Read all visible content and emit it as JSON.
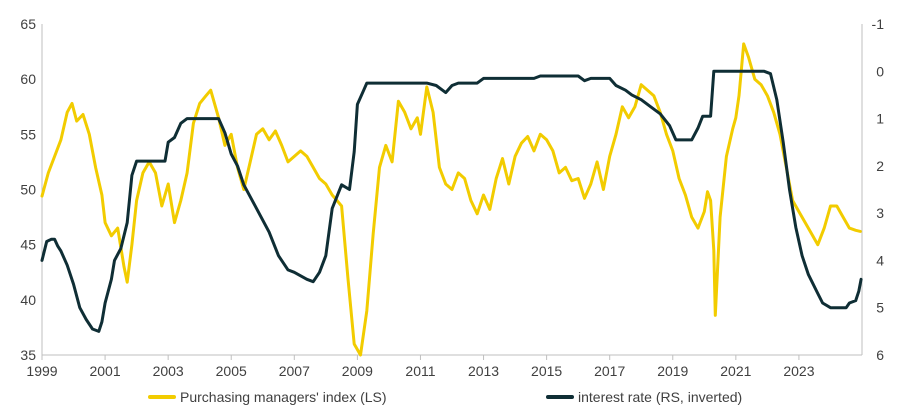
{
  "chart_data": {
    "type": "line",
    "colors": {
      "pmi": "#F2CC00",
      "rate": "#0F2E35"
    },
    "left_axis": {
      "ylim": [
        35,
        65
      ],
      "ticks": [
        35,
        40,
        45,
        50,
        55,
        60,
        65
      ]
    },
    "right_axis": {
      "ylim": [
        -1,
        6
      ],
      "inverted": true,
      "ticks": [
        -1,
        0,
        1,
        2,
        3,
        4,
        5,
        6
      ]
    },
    "xlim": [
      1999,
      2025
    ],
    "x_ticks": [
      "1999",
      "2001",
      "2003",
      "2005",
      "2007",
      "2009",
      "2011",
      "2013",
      "2015",
      "2017",
      "2019",
      "2021",
      "2023"
    ],
    "legend": {
      "pmi": "Purchasing managers' index (LS)",
      "rate": "interest rate (RS, inverted)"
    },
    "series": [
      {
        "name": "Purchasing managers' index (LS)",
        "axis": "left",
        "points": [
          [
            1999.0,
            49.4
          ],
          [
            1999.2,
            51.5
          ],
          [
            1999.4,
            53.0
          ],
          [
            1999.6,
            54.5
          ],
          [
            1999.8,
            57.0
          ],
          [
            1999.95,
            57.8
          ],
          [
            2000.1,
            56.2
          ],
          [
            2000.3,
            56.8
          ],
          [
            2000.5,
            55.0
          ],
          [
            2000.7,
            52.0
          ],
          [
            2000.9,
            49.5
          ],
          [
            2001.0,
            47.0
          ],
          [
            2001.2,
            45.8
          ],
          [
            2001.4,
            46.5
          ],
          [
            2001.6,
            43.0
          ],
          [
            2001.7,
            41.6
          ],
          [
            2001.85,
            45.0
          ],
          [
            2002.0,
            49.0
          ],
          [
            2002.2,
            51.5
          ],
          [
            2002.4,
            52.5
          ],
          [
            2002.6,
            51.5
          ],
          [
            2002.8,
            48.5
          ],
          [
            2003.0,
            50.5
          ],
          [
            2003.2,
            47.0
          ],
          [
            2003.4,
            49.0
          ],
          [
            2003.6,
            51.5
          ],
          [
            2003.8,
            56.0
          ],
          [
            2004.0,
            57.8
          ],
          [
            2004.2,
            58.5
          ],
          [
            2004.35,
            59.0
          ],
          [
            2004.6,
            56.5
          ],
          [
            2004.8,
            54.0
          ],
          [
            2005.0,
            55.0
          ],
          [
            2005.2,
            52.0
          ],
          [
            2005.4,
            50.0
          ],
          [
            2005.6,
            52.5
          ],
          [
            2005.8,
            55.0
          ],
          [
            2006.0,
            55.5
          ],
          [
            2006.2,
            54.5
          ],
          [
            2006.4,
            55.3
          ],
          [
            2006.6,
            54.0
          ],
          [
            2006.8,
            52.5
          ],
          [
            2007.0,
            53.0
          ],
          [
            2007.2,
            53.5
          ],
          [
            2007.4,
            53.0
          ],
          [
            2007.6,
            52.0
          ],
          [
            2007.8,
            51.0
          ],
          [
            2008.0,
            50.5
          ],
          [
            2008.2,
            49.5
          ],
          [
            2008.5,
            48.5
          ],
          [
            2008.7,
            42.0
          ],
          [
            2008.9,
            36.0
          ],
          [
            2009.1,
            35.0
          ],
          [
            2009.3,
            39.0
          ],
          [
            2009.5,
            46.0
          ],
          [
            2009.7,
            52.0
          ],
          [
            2009.9,
            54.0
          ],
          [
            2010.1,
            52.5
          ],
          [
            2010.3,
            58.0
          ],
          [
            2010.5,
            57.0
          ],
          [
            2010.7,
            55.5
          ],
          [
            2010.9,
            56.5
          ],
          [
            2011.0,
            55.0
          ],
          [
            2011.2,
            59.3
          ],
          [
            2011.4,
            57.0
          ],
          [
            2011.6,
            52.0
          ],
          [
            2011.8,
            50.5
          ],
          [
            2012.0,
            50.0
          ],
          [
            2012.2,
            51.5
          ],
          [
            2012.4,
            51.0
          ],
          [
            2012.6,
            49.0
          ],
          [
            2012.8,
            47.8
          ],
          [
            2013.0,
            49.5
          ],
          [
            2013.2,
            48.2
          ],
          [
            2013.4,
            51.0
          ],
          [
            2013.6,
            52.8
          ],
          [
            2013.8,
            50.5
          ],
          [
            2014.0,
            53.0
          ],
          [
            2014.2,
            54.2
          ],
          [
            2014.4,
            54.8
          ],
          [
            2014.6,
            53.5
          ],
          [
            2014.8,
            55.0
          ],
          [
            2015.0,
            54.5
          ],
          [
            2015.2,
            53.5
          ],
          [
            2015.4,
            51.5
          ],
          [
            2015.6,
            52.0
          ],
          [
            2015.8,
            50.8
          ],
          [
            2016.0,
            51.0
          ],
          [
            2016.2,
            49.2
          ],
          [
            2016.4,
            50.5
          ],
          [
            2016.6,
            52.5
          ],
          [
            2016.8,
            50.0
          ],
          [
            2017.0,
            53.0
          ],
          [
            2017.2,
            55.0
          ],
          [
            2017.4,
            57.5
          ],
          [
            2017.6,
            56.5
          ],
          [
            2017.8,
            57.5
          ],
          [
            2018.0,
            59.5
          ],
          [
            2018.2,
            59.0
          ],
          [
            2018.4,
            58.5
          ],
          [
            2018.6,
            57.0
          ],
          [
            2018.8,
            55.0
          ],
          [
            2019.0,
            53.5
          ],
          [
            2019.2,
            51.0
          ],
          [
            2019.4,
            49.5
          ],
          [
            2019.6,
            47.5
          ],
          [
            2019.8,
            46.5
          ],
          [
            2020.0,
            48.0
          ],
          [
            2020.1,
            49.8
          ],
          [
            2020.2,
            49.0
          ],
          [
            2020.3,
            44.5
          ],
          [
            2020.35,
            38.6
          ],
          [
            2020.5,
            47.5
          ],
          [
            2020.7,
            53.0
          ],
          [
            2020.9,
            55.5
          ],
          [
            2021.0,
            56.5
          ],
          [
            2021.1,
            58.5
          ],
          [
            2021.25,
            63.2
          ],
          [
            2021.4,
            62.0
          ],
          [
            2021.6,
            60.0
          ],
          [
            2021.8,
            59.5
          ],
          [
            2022.0,
            58.5
          ],
          [
            2022.2,
            57.0
          ],
          [
            2022.4,
            55.0
          ],
          [
            2022.6,
            52.0
          ],
          [
            2022.8,
            49.0
          ],
          [
            2023.0,
            48.0
          ],
          [
            2023.2,
            47.0
          ],
          [
            2023.4,
            46.0
          ],
          [
            2023.6,
            45.0
          ],
          [
            2023.8,
            46.5
          ],
          [
            2024.0,
            48.5
          ],
          [
            2024.2,
            48.5
          ],
          [
            2024.4,
            47.5
          ],
          [
            2024.6,
            46.5
          ],
          [
            2024.8,
            46.3
          ],
          [
            2024.95,
            46.2
          ]
        ]
      },
      {
        "name": "interest rate (RS, inverted)",
        "axis": "right",
        "points": [
          [
            1999.0,
            4.0
          ],
          [
            1999.15,
            3.6
          ],
          [
            1999.3,
            3.55
          ],
          [
            1999.4,
            3.55
          ],
          [
            1999.5,
            3.7
          ],
          [
            1999.6,
            3.8
          ],
          [
            1999.8,
            4.1
          ],
          [
            2000.0,
            4.5
          ],
          [
            2000.2,
            5.0
          ],
          [
            2000.4,
            5.25
          ],
          [
            2000.6,
            5.45
          ],
          [
            2000.8,
            5.5
          ],
          [
            2000.9,
            5.3
          ],
          [
            2001.0,
            4.9
          ],
          [
            2001.2,
            4.4
          ],
          [
            2001.3,
            4.0
          ],
          [
            2001.5,
            3.75
          ],
          [
            2001.7,
            3.2
          ],
          [
            2001.85,
            2.2
          ],
          [
            2002.0,
            1.9
          ],
          [
            2002.9,
            1.9
          ],
          [
            2003.0,
            1.5
          ],
          [
            2003.2,
            1.4
          ],
          [
            2003.4,
            1.1
          ],
          [
            2003.6,
            1.0
          ],
          [
            2004.6,
            1.0
          ],
          [
            2004.8,
            1.3
          ],
          [
            2005.0,
            1.75
          ],
          [
            2005.2,
            2.0
          ],
          [
            2005.4,
            2.4
          ],
          [
            2005.8,
            2.9
          ],
          [
            2006.2,
            3.4
          ],
          [
            2006.5,
            3.9
          ],
          [
            2006.8,
            4.2
          ],
          [
            2007.0,
            4.25
          ],
          [
            2007.4,
            4.4
          ],
          [
            2007.6,
            4.45
          ],
          [
            2007.8,
            4.25
          ],
          [
            2008.0,
            3.9
          ],
          [
            2008.2,
            2.9
          ],
          [
            2008.5,
            2.4
          ],
          [
            2008.75,
            2.5
          ],
          [
            2008.9,
            1.7
          ],
          [
            2009.0,
            0.7
          ],
          [
            2009.2,
            0.4
          ],
          [
            2009.3,
            0.25
          ],
          [
            2011.2,
            0.25
          ],
          [
            2011.5,
            0.3
          ],
          [
            2011.7,
            0.4
          ],
          [
            2011.8,
            0.45
          ],
          [
            2012.0,
            0.3
          ],
          [
            2012.2,
            0.25
          ],
          [
            2012.8,
            0.25
          ],
          [
            2013.0,
            0.15
          ],
          [
            2014.6,
            0.15
          ],
          [
            2014.8,
            0.1
          ],
          [
            2016.0,
            0.1
          ],
          [
            2016.2,
            0.2
          ],
          [
            2016.4,
            0.15
          ],
          [
            2017.0,
            0.15
          ],
          [
            2017.2,
            0.3
          ],
          [
            2017.5,
            0.4
          ],
          [
            2017.7,
            0.5
          ],
          [
            2018.0,
            0.6
          ],
          [
            2018.3,
            0.75
          ],
          [
            2018.6,
            0.9
          ],
          [
            2018.9,
            1.15
          ],
          [
            2019.1,
            1.45
          ],
          [
            2019.6,
            1.45
          ],
          [
            2019.8,
            1.2
          ],
          [
            2019.95,
            0.95
          ],
          [
            2020.2,
            0.95
          ],
          [
            2020.3,
            0.0
          ],
          [
            2021.9,
            0.0
          ],
          [
            2022.1,
            0.05
          ],
          [
            2022.3,
            0.6
          ],
          [
            2022.5,
            1.5
          ],
          [
            2022.7,
            2.5
          ],
          [
            2022.9,
            3.3
          ],
          [
            2023.1,
            3.9
          ],
          [
            2023.3,
            4.3
          ],
          [
            2023.6,
            4.7
          ],
          [
            2023.75,
            4.9
          ],
          [
            2024.0,
            5.0
          ],
          [
            2024.5,
            5.0
          ],
          [
            2024.6,
            4.9
          ],
          [
            2024.8,
            4.85
          ],
          [
            2024.9,
            4.65
          ],
          [
            2024.97,
            4.4
          ]
        ]
      }
    ]
  }
}
